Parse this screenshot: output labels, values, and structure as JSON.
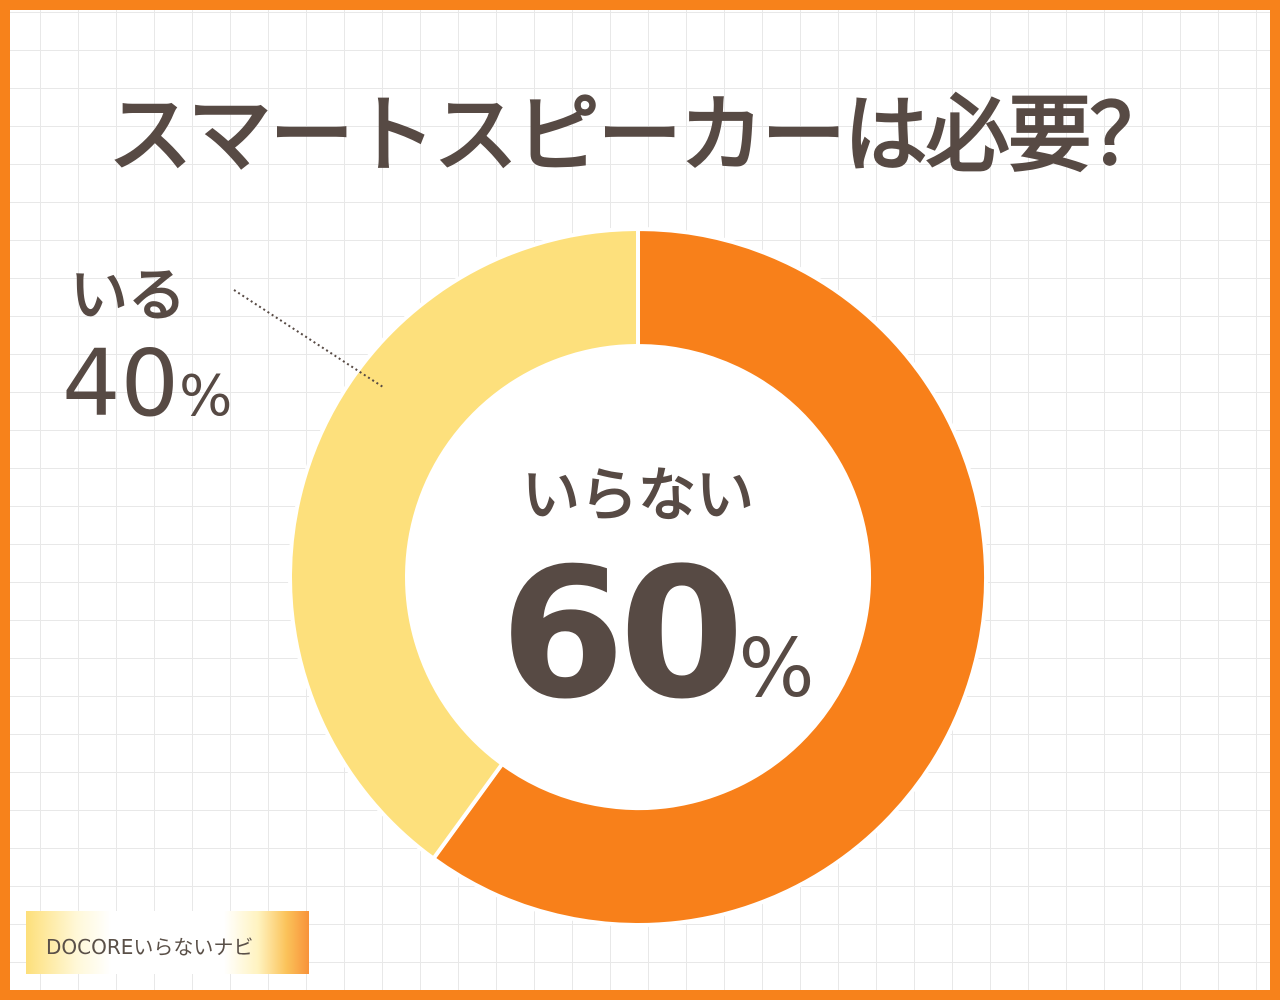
{
  "title": "スマートスピーカーは必要？",
  "colors": {
    "border": "#f7821b",
    "iranai": "#f8801a",
    "iru": "#fde07c",
    "text": "#574a44"
  },
  "chart_data": {
    "type": "pie",
    "style": "donut",
    "title": "スマートスピーカーは必要？",
    "slices": [
      {
        "label": "いらない",
        "value": 60,
        "display": "60",
        "unit": "%",
        "color": "#f8801a"
      },
      {
        "label": "いる",
        "value": 40,
        "display": "40",
        "unit": "%",
        "color": "#fde07c"
      }
    ]
  },
  "logo": {
    "text": "DOCOREいらないナビ"
  }
}
